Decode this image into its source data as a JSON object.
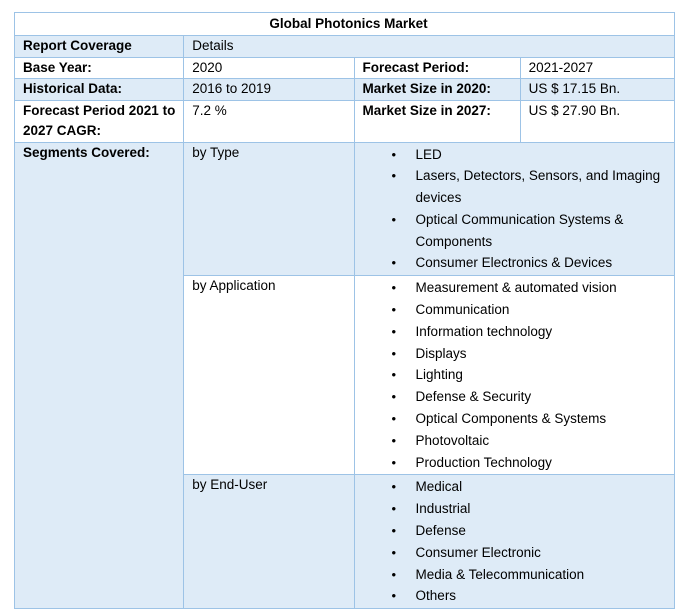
{
  "table": {
    "title": "Global Photonics Market",
    "header": {
      "label": "Report Coverage",
      "value": "Details"
    },
    "base_year": {
      "label": "Base Year:",
      "value": "2020"
    },
    "forecast_period": {
      "label": "Forecast Period:",
      "value": "2021-2027"
    },
    "historical_data": {
      "label": "Historical Data:",
      "value": "2016 to 2019"
    },
    "market_size_2020": {
      "label": "Market Size in 2020:",
      "value": "US $ 17.15 Bn."
    },
    "cagr": {
      "label": "Forecast Period 2021 to 2027 CAGR:",
      "value": "7.2 %"
    },
    "market_size_2027": {
      "label": "Market Size in 2027:",
      "value": "US $ 27.90 Bn."
    },
    "segments": {
      "label": "Segments Covered:",
      "bullet": "•",
      "groups": [
        {
          "name": "by Type",
          "items": [
            "LED",
            "Lasers, Detectors, Sensors, and Imaging devices",
            "Optical Communication Systems & Components",
            "Consumer Electronics & Devices"
          ]
        },
        {
          "name": "by Application",
          "items": [
            "Measurement & automated vision",
            "Communication",
            "Information technology",
            "Displays",
            "Lighting",
            "Defense & Security",
            "Optical Components & Systems",
            "Photovoltaic",
            "Production Technology"
          ]
        },
        {
          "name": "by End-User",
          "items": [
            "Medical",
            "Industrial",
            "Defense",
            "Consumer Electronic",
            "Media & Telecommunication",
            "Others"
          ]
        }
      ]
    }
  },
  "colors": {
    "row_shade": "#deebf7",
    "border": "#9dc3e6"
  }
}
